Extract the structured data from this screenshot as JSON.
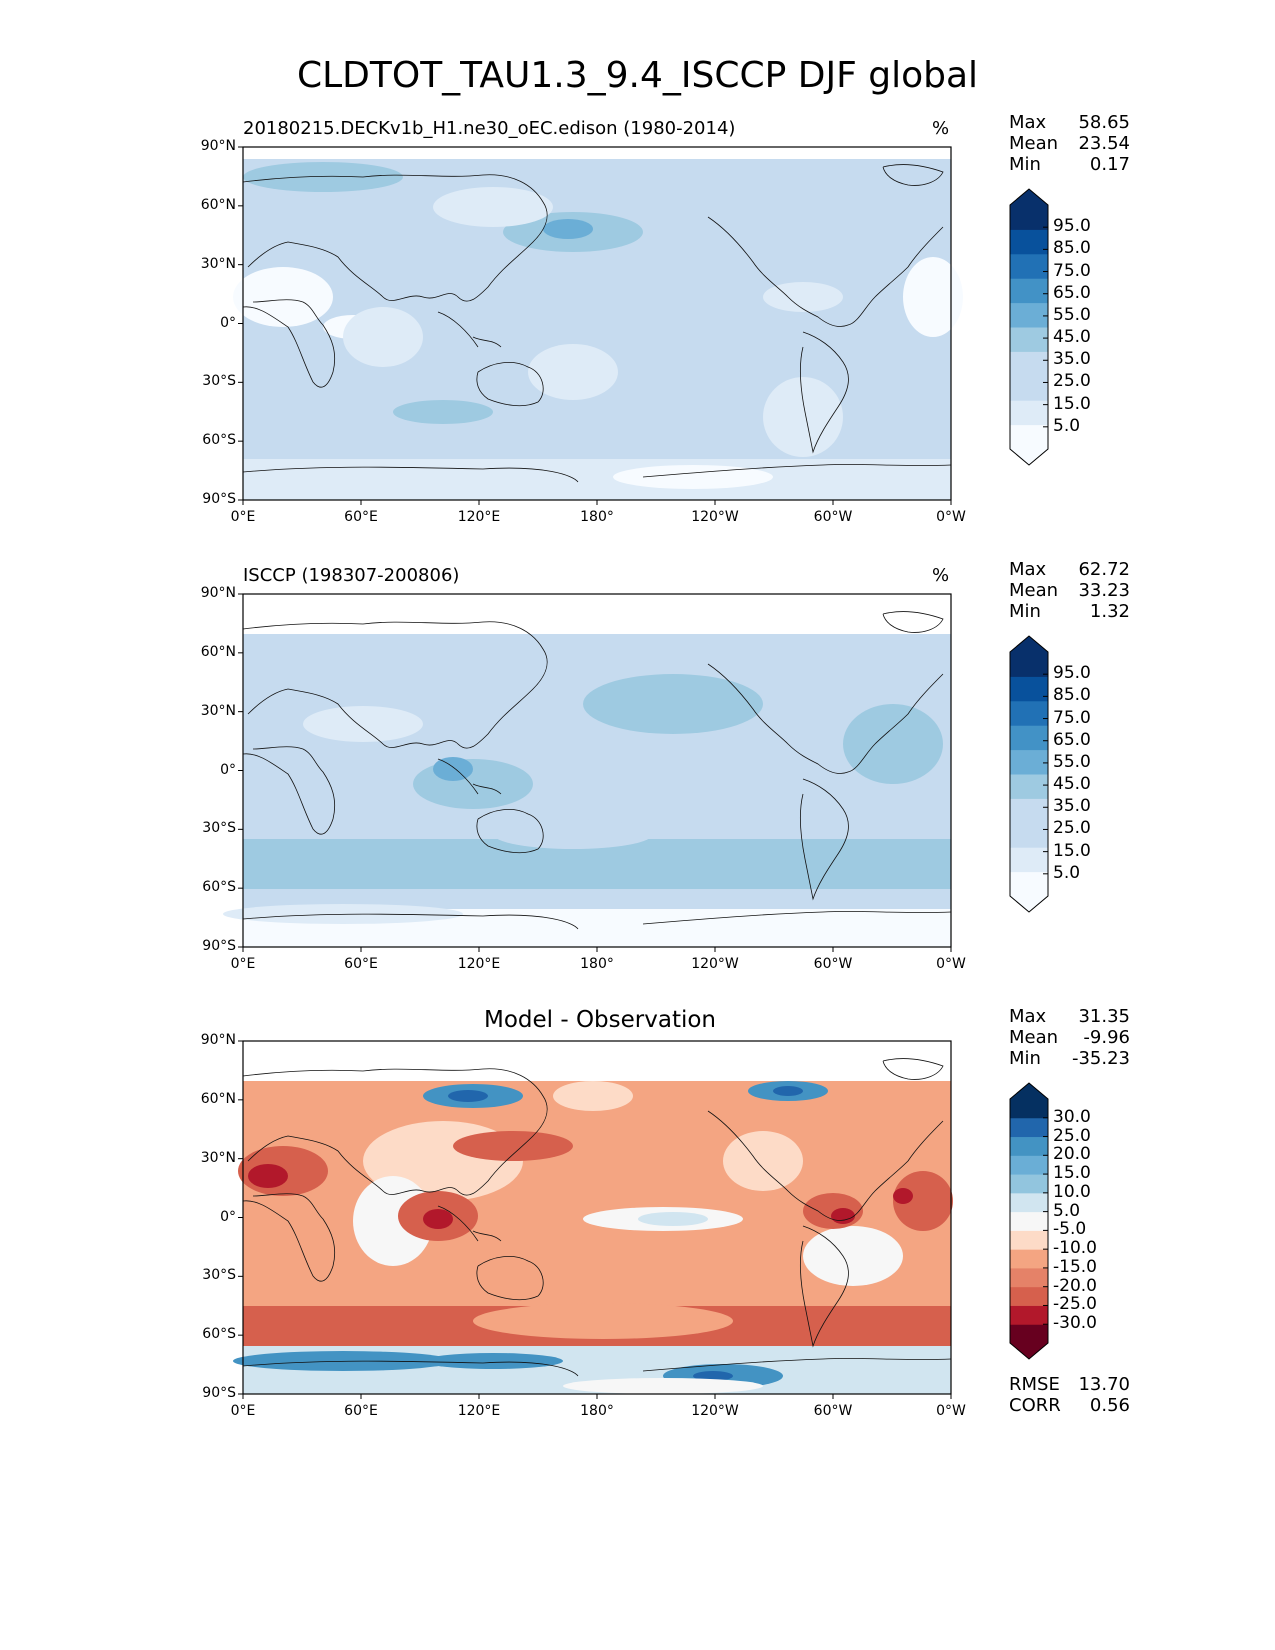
{
  "figure": {
    "title": "CLDTOT_TAU1.3_9.4_ISCCP DJF global"
  },
  "xticks": [
    "0°E",
    "60°E",
    "120°E",
    "180°",
    "120°W",
    "60°W",
    "0°W"
  ],
  "yticks": [
    "90°N",
    "60°N",
    "30°N",
    "0°",
    "30°S",
    "60°S",
    "90°S"
  ],
  "panels": [
    {
      "left_title": "20180215.DECKv1b_H1.ne30_oEC.edison (1980-2014)",
      "center_title": "",
      "unit": "%",
      "stats": {
        "labels": [
          "Max",
          "Mean",
          "Min"
        ],
        "values": [
          "58.65",
          "23.54",
          "0.17"
        ]
      },
      "colorbar": {
        "labels": [
          "95.0",
          "85.0",
          "75.0",
          "65.0",
          "55.0",
          "45.0",
          "35.0",
          "25.0",
          "15.0",
          "5.0"
        ]
      }
    },
    {
      "left_title": "ISCCP (198307-200806)",
      "center_title": "",
      "unit": "%",
      "stats": {
        "labels": [
          "Max",
          "Mean",
          "Min"
        ],
        "values": [
          "62.72",
          "33.23",
          "1.32"
        ]
      },
      "colorbar": {
        "labels": [
          "95.0",
          "85.0",
          "75.0",
          "65.0",
          "55.0",
          "45.0",
          "35.0",
          "25.0",
          "15.0",
          "5.0"
        ]
      }
    },
    {
      "left_title": "",
      "center_title": "Model - Observation",
      "unit": "",
      "stats": {
        "labels": [
          "Max",
          "Mean",
          "Min"
        ],
        "values": [
          "31.35",
          "-9.96",
          "-35.23"
        ]
      },
      "colorbar": {
        "labels": [
          "30.0",
          "25.0",
          "20.0",
          "15.0",
          "10.0",
          "5.0",
          "-5.0",
          "-10.0",
          "-15.0",
          "-20.0",
          "-25.0",
          "-30.0"
        ]
      },
      "extra_stats": {
        "labels": [
          "RMSE",
          "CORR"
        ],
        "values": [
          "13.70",
          "0.56"
        ]
      }
    }
  ],
  "colors": {
    "blues": [
      "#f7fbff",
      "#deebf7",
      "#c6dbef",
      "#9ecae1",
      "#6baed6",
      "#4292c6",
      "#2171b5",
      "#08519c",
      "#08306b"
    ],
    "diff": [
      "#67001f",
      "#b2182b",
      "#d6604d",
      "#f4a582",
      "#fddbc7",
      "#f7f7f7",
      "#d1e5f0",
      "#92c5de",
      "#4393c3",
      "#2166ac",
      "#053061"
    ]
  }
}
